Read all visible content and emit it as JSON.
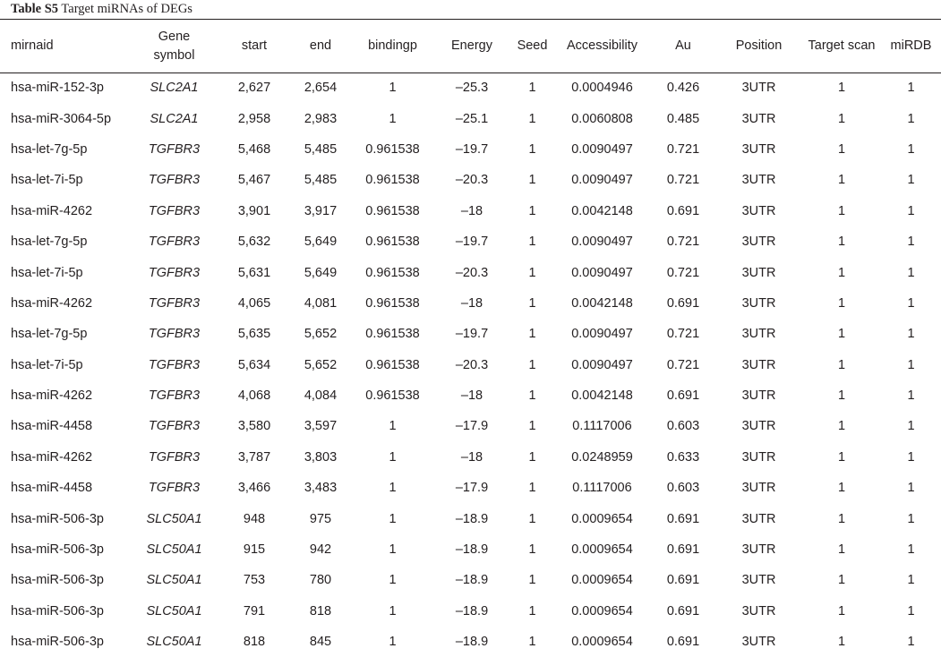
{
  "caption": {
    "label": "Table S5",
    "text": " Target miRNAs of DEGs"
  },
  "columns": [
    "mirnaid",
    "Gene\nsymbol",
    "start",
    "end",
    "bindingp",
    "Energy",
    "Seed",
    "Accessibility",
    "Au",
    "Position",
    "Target scan",
    "miRDB"
  ],
  "rows": [
    [
      "hsa-miR-152-3p",
      "SLC2A1",
      "2,627",
      "2,654",
      "1",
      "–25.3",
      "1",
      "0.0004946",
      "0.426",
      "3UTR",
      "1",
      "1"
    ],
    [
      "hsa-miR-3064-5p",
      "SLC2A1",
      "2,958",
      "2,983",
      "1",
      "–25.1",
      "1",
      "0.0060808",
      "0.485",
      "3UTR",
      "1",
      "1"
    ],
    [
      "hsa-let-7g-5p",
      "TGFBR3",
      "5,468",
      "5,485",
      "0.961538",
      "–19.7",
      "1",
      "0.0090497",
      "0.721",
      "3UTR",
      "1",
      "1"
    ],
    [
      "hsa-let-7i-5p",
      "TGFBR3",
      "5,467",
      "5,485",
      "0.961538",
      "–20.3",
      "1",
      "0.0090497",
      "0.721",
      "3UTR",
      "1",
      "1"
    ],
    [
      "hsa-miR-4262",
      "TGFBR3",
      "3,901",
      "3,917",
      "0.961538",
      "–18",
      "1",
      "0.0042148",
      "0.691",
      "3UTR",
      "1",
      "1"
    ],
    [
      "hsa-let-7g-5p",
      "TGFBR3",
      "5,632",
      "5,649",
      "0.961538",
      "–19.7",
      "1",
      "0.0090497",
      "0.721",
      "3UTR",
      "1",
      "1"
    ],
    [
      "hsa-let-7i-5p",
      "TGFBR3",
      "5,631",
      "5,649",
      "0.961538",
      "–20.3",
      "1",
      "0.0090497",
      "0.721",
      "3UTR",
      "1",
      "1"
    ],
    [
      "hsa-miR-4262",
      "TGFBR3",
      "4,065",
      "4,081",
      "0.961538",
      "–18",
      "1",
      "0.0042148",
      "0.691",
      "3UTR",
      "1",
      "1"
    ],
    [
      "hsa-let-7g-5p",
      "TGFBR3",
      "5,635",
      "5,652",
      "0.961538",
      "–19.7",
      "1",
      "0.0090497",
      "0.721",
      "3UTR",
      "1",
      "1"
    ],
    [
      "hsa-let-7i-5p",
      "TGFBR3",
      "5,634",
      "5,652",
      "0.961538",
      "–20.3",
      "1",
      "0.0090497",
      "0.721",
      "3UTR",
      "1",
      "1"
    ],
    [
      "hsa-miR-4262",
      "TGFBR3",
      "4,068",
      "4,084",
      "0.961538",
      "–18",
      "1",
      "0.0042148",
      "0.691",
      "3UTR",
      "1",
      "1"
    ],
    [
      "hsa-miR-4458",
      "TGFBR3",
      "3,580",
      "3,597",
      "1",
      "–17.9",
      "1",
      "0.1117006",
      "0.603",
      "3UTR",
      "1",
      "1"
    ],
    [
      "hsa-miR-4262",
      "TGFBR3",
      "3,787",
      "3,803",
      "1",
      "–18",
      "1",
      "0.0248959",
      "0.633",
      "3UTR",
      "1",
      "1"
    ],
    [
      "hsa-miR-4458",
      "TGFBR3",
      "3,466",
      "3,483",
      "1",
      "–17.9",
      "1",
      "0.1117006",
      "0.603",
      "3UTR",
      "1",
      "1"
    ],
    [
      "hsa-miR-506-3p",
      "SLC50A1",
      "948",
      "975",
      "1",
      "–18.9",
      "1",
      "0.0009654",
      "0.691",
      "3UTR",
      "1",
      "1"
    ],
    [
      "hsa-miR-506-3p",
      "SLC50A1",
      "915",
      "942",
      "1",
      "–18.9",
      "1",
      "0.0009654",
      "0.691",
      "3UTR",
      "1",
      "1"
    ],
    [
      "hsa-miR-506-3p",
      "SLC50A1",
      "753",
      "780",
      "1",
      "–18.9",
      "1",
      "0.0009654",
      "0.691",
      "3UTR",
      "1",
      "1"
    ],
    [
      "hsa-miR-506-3p",
      "SLC50A1",
      "791",
      "818",
      "1",
      "–18.9",
      "1",
      "0.0009654",
      "0.691",
      "3UTR",
      "1",
      "1"
    ],
    [
      "hsa-miR-506-3p",
      "SLC50A1",
      "818",
      "845",
      "1",
      "–18.9",
      "1",
      "0.0009654",
      "0.691",
      "3UTR",
      "1",
      "1"
    ]
  ]
}
